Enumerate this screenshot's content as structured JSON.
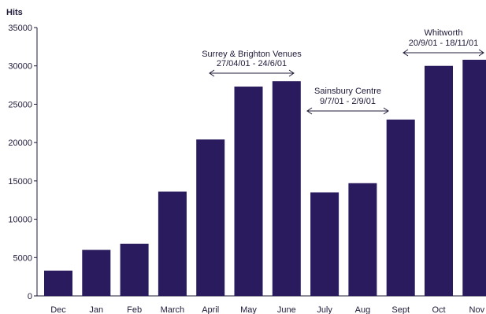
{
  "chart_data": {
    "type": "bar",
    "ylabel": "Hits",
    "ylim": [
      0,
      35000
    ],
    "yticks": [
      0,
      5000,
      10000,
      15000,
      20000,
      25000,
      30000,
      35000
    ],
    "categories": [
      "Dec",
      "Jan",
      "Feb",
      "March",
      "April",
      "May",
      "June",
      "July",
      "Aug",
      "Sept",
      "Oct",
      "Nov"
    ],
    "values": [
      3300,
      6000,
      6800,
      13600,
      20400,
      27300,
      28000,
      13500,
      14700,
      23000,
      30000,
      30800
    ],
    "bar_color": "#2a1a5e",
    "grid": false,
    "annotations": [
      {
        "line1": "Surrey & Brighton Venues",
        "line2": "27/04/01 - 24/6/01",
        "from": "April",
        "to": "June"
      },
      {
        "line1": "Sainsbury Centre",
        "line2": "9/7/01 - 2/9/01",
        "from": "July",
        "to": "Sept"
      },
      {
        "line1": "Whitworth",
        "line2": "20/9/01 - 18/11/01",
        "from": "Sept",
        "to": "Nov"
      }
    ]
  }
}
